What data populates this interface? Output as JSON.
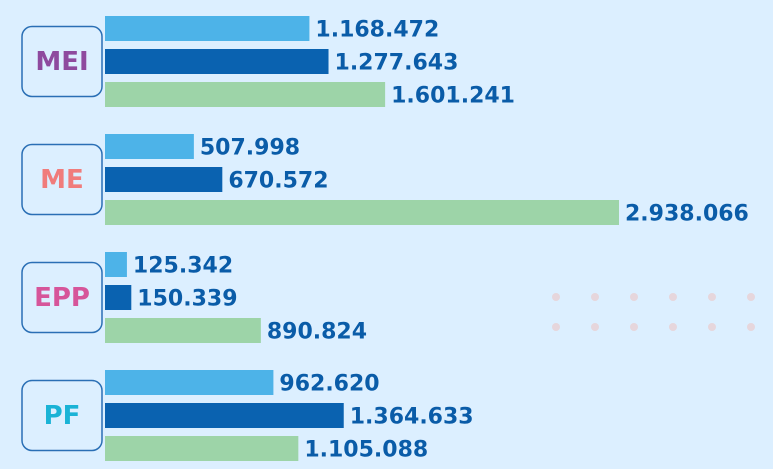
{
  "chart_data": {
    "type": "bar",
    "orientation": "horizontal",
    "categories": [
      "MEI",
      "ME",
      "EPP",
      "PF"
    ],
    "category_colors": [
      "#8e4a9e",
      "#f07c7c",
      "#d6559a",
      "#1ab3d6"
    ],
    "series": [
      {
        "color": "#4db3e8",
        "values": [
          1168472,
          507998,
          125342,
          962620
        ],
        "value_labels": [
          "1.168.472",
          "507.998",
          "125.342",
          "962.620"
        ]
      },
      {
        "color": "#0a62b0",
        "values": [
          1277643,
          670572,
          150339,
          1364633
        ],
        "value_labels": [
          "1.277.643",
          "670.572",
          "150.339",
          "1.364.633"
        ]
      },
      {
        "color": "#9dd4a8",
        "values": [
          1601241,
          2938066,
          890824,
          1105088
        ],
        "value_labels": [
          "1.601.241",
          "2.938.066",
          "890.824",
          "1.105.088"
        ]
      }
    ]
  }
}
